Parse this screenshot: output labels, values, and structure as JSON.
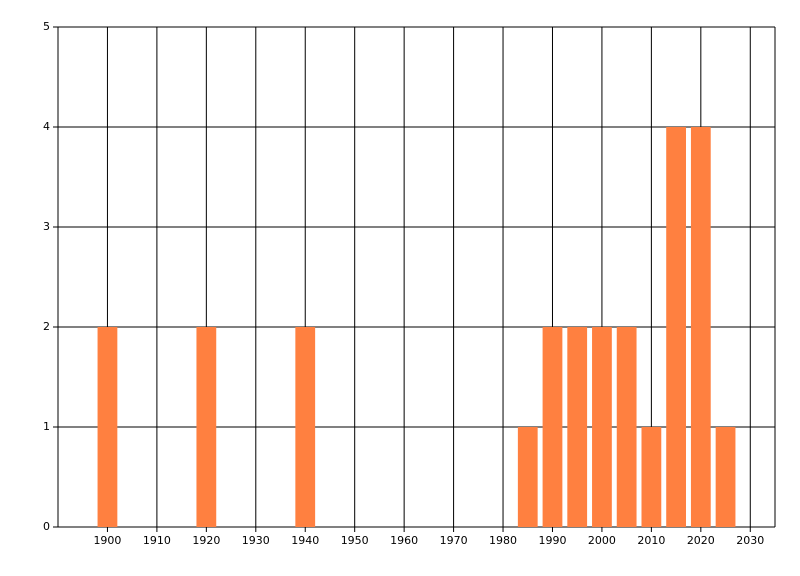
{
  "chart_data": {
    "type": "bar",
    "x": [
      1900,
      1920,
      1940,
      1985,
      1990,
      1995,
      2000,
      2005,
      2010,
      2015,
      2020,
      2025
    ],
    "values": [
      2,
      2,
      2,
      1,
      2,
      2,
      2,
      2,
      1,
      4,
      4,
      1
    ],
    "color": "#ff8040",
    "xlim": [
      1890,
      2035
    ],
    "ylim": [
      0,
      5
    ],
    "xticks": [
      1900,
      1910,
      1920,
      1930,
      1940,
      1950,
      1960,
      1970,
      1980,
      1990,
      2000,
      2010,
      2020,
      2030
    ],
    "yticks": [
      0,
      1,
      2,
      3,
      4,
      5
    ],
    "bar_width": 4,
    "grid": true
  }
}
